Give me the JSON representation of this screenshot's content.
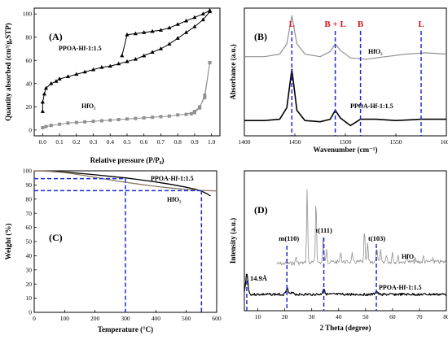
{
  "chart_data": [
    {
      "panel": "(A)",
      "type": "line",
      "xlabel": "Relative pressure (P/P₀)",
      "ylabel": "Quantity absorbed (cm³/g,STP)",
      "xlim": [
        -0.05,
        1.05
      ],
      "ylim": [
        -5,
        105
      ],
      "xticks": [
        "0.0",
        "0.1",
        "0.2",
        "0.3",
        "0.4",
        "0.5",
        "0.6",
        "0.7",
        "0.8",
        "0.9",
        "1.0"
      ],
      "yticks": [
        "0",
        "20",
        "40",
        "60",
        "80",
        "100"
      ],
      "series": [
        {
          "name": "PPOA-Hf-1:1.5",
          "color": "#000000",
          "marker": "triangle",
          "x": [
            0.0,
            0.0,
            0.01,
            0.02,
            0.05,
            0.08,
            0.1,
            0.15,
            0.2,
            0.25,
            0.3,
            0.35,
            0.4,
            0.45,
            0.5,
            0.55,
            0.6,
            0.65,
            0.7,
            0.75,
            0.8,
            0.85,
            0.9,
            0.95,
            0.99
          ],
          "y": [
            16,
            24,
            31,
            36,
            40,
            42,
            44,
            46,
            48,
            50,
            52,
            54,
            55,
            57,
            59,
            61,
            64,
            67,
            70,
            74,
            79,
            84,
            89,
            95,
            102
          ]
        },
        {
          "name": "PPOA-Hf-1:1.5 desorption",
          "color": "#000000",
          "marker": "triangle",
          "x": [
            0.99,
            0.95,
            0.9,
            0.85,
            0.8,
            0.75,
            0.7,
            0.65,
            0.6,
            0.55,
            0.5,
            0.47
          ],
          "y": [
            103,
            100,
            97,
            94,
            91,
            88,
            86,
            85,
            84,
            83,
            82,
            64
          ]
        },
        {
          "name": "HfO₂",
          "color": "#909090",
          "marker": "square",
          "x": [
            0.0,
            0.02,
            0.05,
            0.1,
            0.15,
            0.2,
            0.25,
            0.3,
            0.35,
            0.4,
            0.45,
            0.5,
            0.55,
            0.6,
            0.65,
            0.7,
            0.75,
            0.8,
            0.85,
            0.9,
            0.93,
            0.96,
            0.99
          ],
          "y": [
            2,
            3,
            4,
            5,
            6,
            6.5,
            7,
            7.5,
            8,
            8.5,
            9,
            9.5,
            10,
            10.5,
            11,
            11.5,
            12,
            13,
            13.5,
            16,
            20,
            28,
            58
          ]
        },
        {
          "name": "HfO₂ desorption",
          "color": "#909090",
          "marker": "square",
          "x": [
            0.99,
            0.96,
            0.93,
            0.9,
            0.88
          ],
          "y": [
            58,
            30,
            19,
            15,
            14
          ]
        }
      ],
      "annotations": [
        "(A)",
        "PPOA-Hf-1:1.5",
        "HfO₂"
      ]
    },
    {
      "panel": "(B)",
      "type": "line",
      "xlabel": "Wavenumber (cm⁻¹)",
      "ylabel": "Absorbance (a.u.)",
      "xlim": [
        1400,
        1600
      ],
      "xticks": [
        "1400",
        "1450",
        "1500",
        "1550",
        "1600"
      ],
      "series": [
        {
          "name": "HfO₂",
          "color": "#909090",
          "x": [
            1400,
            1420,
            1435,
            1442,
            1447,
            1452,
            1460,
            1475,
            1485,
            1490,
            1495,
            1505,
            1520,
            1540,
            1560,
            1580,
            1600
          ],
          "y": [
            0.62,
            0.62,
            0.64,
            0.72,
            0.94,
            0.72,
            0.64,
            0.62,
            0.66,
            0.72,
            0.67,
            0.61,
            0.6,
            0.62,
            0.64,
            0.65,
            0.64
          ]
        },
        {
          "name": "PPOA-Hf-1:1.5",
          "color": "#000000",
          "x": [
            1400,
            1420,
            1435,
            1442,
            1447,
            1452,
            1460,
            1475,
            1485,
            1490,
            1495,
            1505,
            1515,
            1530,
            1550,
            1575,
            1600
          ],
          "y": [
            0.12,
            0.12,
            0.13,
            0.22,
            0.52,
            0.2,
            0.12,
            0.11,
            0.13,
            0.2,
            0.14,
            0.08,
            0.13,
            0.13,
            0.12,
            0.13,
            0.13
          ]
        }
      ],
      "markers": [
        {
          "label": "L",
          "x": 1447
        },
        {
          "label": "B + L",
          "x": 1490
        },
        {
          "label": "B",
          "x": 1515
        },
        {
          "label": "L",
          "x": 1575
        }
      ],
      "annotations": [
        "(B)",
        "HfO₂",
        "PPOA-Hf-1:1.5"
      ]
    },
    {
      "panel": "(C)",
      "type": "line",
      "xlabel": "Temperature (°C)",
      "ylabel": "Weight (%)",
      "xlim": [
        0,
        600
      ],
      "ylim": [
        0,
        100
      ],
      "xticks": [
        "0",
        "100",
        "200",
        "300",
        "400",
        "500",
        "600"
      ],
      "yticks": [
        "0",
        "10",
        "20",
        "30",
        "40",
        "50",
        "60",
        "70",
        "80",
        "90",
        "100"
      ],
      "series": [
        {
          "name": "PPOA-Hf-1:1.5",
          "color": "#000000",
          "x": [
            0,
            50,
            100,
            150,
            200,
            250,
            300,
            350,
            400,
            450,
            500,
            530,
            550,
            570,
            580
          ],
          "y": [
            100,
            99.7,
            99.2,
            98.2,
            97.2,
            96.1,
            95,
            93.6,
            92.1,
            90.4,
            88.4,
            87,
            85.7,
            83.6,
            82.2
          ]
        },
        {
          "name": "HfO₂",
          "color": "#8c7a60",
          "x": [
            0,
            50,
            100,
            150,
            200,
            250,
            300,
            350,
            400,
            450,
            500,
            550,
            600
          ],
          "y": [
            100,
            99.6,
            98.8,
            97.2,
            95.4,
            93.6,
            91.9,
            90.4,
            89,
            87.8,
            86.8,
            86.1,
            85.8
          ]
        }
      ],
      "guides": {
        "x": [
          300,
          550
        ],
        "y": [
          94.5,
          86
        ]
      },
      "annotations": [
        "(C)",
        "PPOA-Hf-1:1.5",
        "HfO₂"
      ]
    },
    {
      "panel": "(D)",
      "type": "line",
      "xlabel": "2 Theta (degree)",
      "ylabel": "Intensity (a.u.)",
      "xlim": [
        5,
        80
      ],
      "xticks": [
        "10",
        "20",
        "30",
        "40",
        "50",
        "60",
        "70",
        "80"
      ],
      "series": [
        {
          "name": "HfO₂",
          "color": "#909090"
        },
        {
          "name": "PPOA-Hf-1:1.5",
          "color": "#000000"
        }
      ],
      "markers": [
        {
          "label": "14.9Å",
          "x": 5.9
        },
        {
          "label": "m(110)",
          "x": 20.8
        },
        {
          "label": "t(111)",
          "x": 34.5
        },
        {
          "label": "t(103)",
          "x": 54
        }
      ],
      "annotations": [
        "(D)",
        "HfO₂",
        "PPOA-Hf-1:1.5"
      ]
    }
  ]
}
